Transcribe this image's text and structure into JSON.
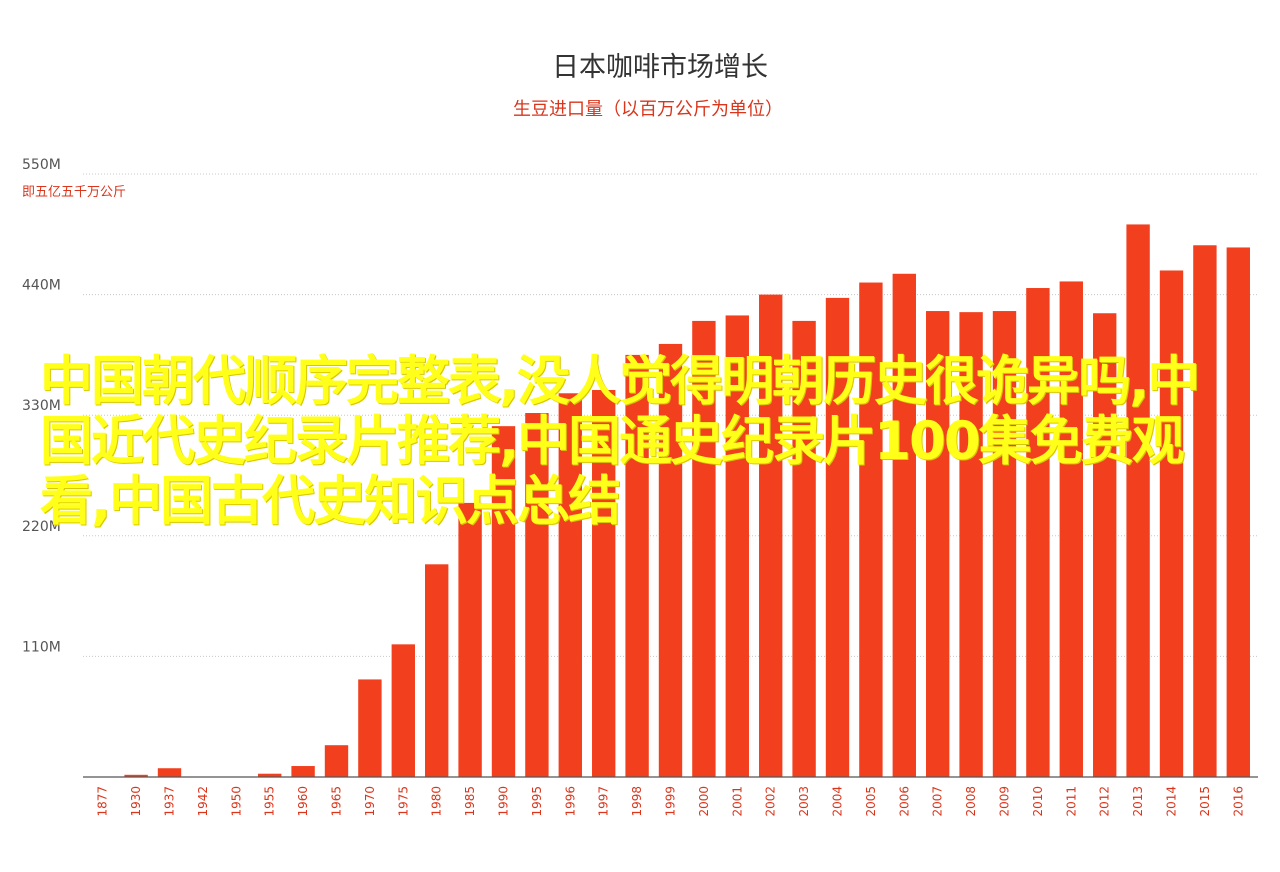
{
  "chart_data": {
    "type": "bar",
    "title": "日本咖啡市场增长",
    "subtitle": "生豆进口量（以百万公斤为单位）",
    "ytick_labels": [
      "550M",
      "440M",
      "330M",
      "220M",
      "110M"
    ],
    "ytick_values": [
      550,
      440,
      330,
      220,
      110
    ],
    "yaxis_note": "即五亿五千万公斤",
    "ylim": [
      0,
      550
    ],
    "grid": true,
    "bar_color": "#f2401f",
    "categories": [
      "1877",
      "1930",
      "1937",
      "1942",
      "1950",
      "1955",
      "1960",
      "1965",
      "1970",
      "1975",
      "1980",
      "1985",
      "1990",
      "1995",
      "1996",
      "1997",
      "1998",
      "1999",
      "2000",
      "2001",
      "2002",
      "2003",
      "2004",
      "2005",
      "2006",
      "2007",
      "2008",
      "2009",
      "2010",
      "2011",
      "2012",
      "2013",
      "2014",
      "2015",
      "2016"
    ],
    "values": [
      0,
      2,
      8,
      0,
      0,
      3,
      10,
      29,
      89,
      121,
      194,
      250,
      320,
      332,
      350,
      353,
      385,
      395,
      416,
      421,
      440,
      416,
      437,
      451,
      459,
      425,
      424,
      425,
      446,
      452,
      423,
      504,
      462,
      485,
      483
    ]
  },
  "overlay_text": "中国朝代顺序完整表,没人觉得明朝历史很诡异吗,中国近代史纪录片推荐,中国通史纪录片100集免费观看,中国古代史知识点总结"
}
